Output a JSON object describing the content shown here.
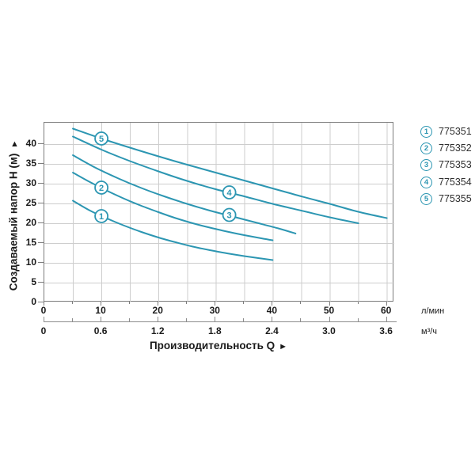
{
  "colors": {
    "curve": "#2c96b2",
    "grid": "#cdcdcd",
    "plot_border": "#7d7d7d",
    "axis2": "#8c8c8c",
    "text": "#1a1a1a",
    "legend_text": "#2e2e2e",
    "background": "#ffffff"
  },
  "y_axis": {
    "title": "Создаваемый напор H (м)",
    "arrow": "▲",
    "ticks": [
      0,
      5,
      10,
      15,
      20,
      25,
      30,
      35,
      40
    ]
  },
  "x_axis": {
    "title": "Производительность Q",
    "arrow": "►",
    "primary_ticks": [
      0,
      10,
      20,
      30,
      40,
      50,
      60
    ],
    "primary_unit": "л/мин",
    "secondary_ticks": [
      "0",
      "0.6",
      "1.2",
      "1.8",
      "2.4",
      "3.0",
      "3.6"
    ],
    "secondary_unit": "м³/ч"
  },
  "legend": {
    "items": [
      {
        "index": "1",
        "label": "775351"
      },
      {
        "index": "2",
        "label": "775352"
      },
      {
        "index": "3",
        "label": "775353"
      },
      {
        "index": "4",
        "label": "775354"
      },
      {
        "index": "5",
        "label": "775355"
      }
    ]
  },
  "chart_data": {
    "type": "line",
    "title": "",
    "xlabel": "Производительность Q (л/мин)",
    "x_secondary_label": "Производительность Q (м³/ч)",
    "ylabel": "Создаваемый напор H (м)",
    "xlim": [
      0,
      61.3
    ],
    "ylim": [
      0,
      45.4
    ],
    "grid": true,
    "grid_step": 5,
    "legend_position": "right",
    "series": [
      {
        "name": "775351",
        "marker": "1",
        "marker_at": [
          10,
          21.8
        ],
        "points": [
          [
            5,
            25.7
          ],
          [
            8,
            23.2
          ],
          [
            11,
            21.2
          ],
          [
            14,
            19.4
          ],
          [
            17,
            17.8
          ],
          [
            20,
            16.4
          ],
          [
            23,
            15.2
          ],
          [
            26,
            14.1
          ],
          [
            29,
            13.2
          ],
          [
            32,
            12.4
          ],
          [
            35,
            11.7
          ],
          [
            38,
            11.1
          ],
          [
            40,
            10.7
          ]
        ]
      },
      {
        "name": "775352",
        "marker": "2",
        "marker_at": [
          10,
          29.0
        ],
        "points": [
          [
            5,
            32.8
          ],
          [
            8,
            30.4
          ],
          [
            11,
            28.2
          ],
          [
            14,
            26.2
          ],
          [
            17,
            24.4
          ],
          [
            20,
            22.8
          ],
          [
            23,
            21.3
          ],
          [
            26,
            20.0
          ],
          [
            29,
            18.9
          ],
          [
            32,
            17.9
          ],
          [
            35,
            17.0
          ],
          [
            38,
            16.2
          ],
          [
            40,
            15.7
          ]
        ]
      },
      {
        "name": "775353",
        "marker": "3",
        "marker_at": [
          32.4,
          22.1
        ],
        "points": [
          [
            5,
            37.2
          ],
          [
            9,
            34.0
          ],
          [
            13,
            31.3
          ],
          [
            17,
            28.9
          ],
          [
            21,
            26.8
          ],
          [
            25,
            24.9
          ],
          [
            29,
            23.2
          ],
          [
            33,
            21.7
          ],
          [
            37,
            20.2
          ],
          [
            41,
            18.7
          ],
          [
            44,
            17.4
          ]
        ]
      },
      {
        "name": "775354",
        "marker": "4",
        "marker_at": [
          32.4,
          27.8
        ],
        "points": [
          [
            5,
            41.9
          ],
          [
            10,
            38.6
          ],
          [
            15,
            35.7
          ],
          [
            20,
            33.1
          ],
          [
            25,
            30.7
          ],
          [
            30,
            28.6
          ],
          [
            35,
            26.8
          ],
          [
            40,
            24.9
          ],
          [
            45,
            23.2
          ],
          [
            50,
            21.5
          ],
          [
            55,
            20.0
          ]
        ]
      },
      {
        "name": "775355",
        "marker": "5",
        "marker_at": [
          10,
          41.4
        ],
        "points": [
          [
            5,
            43.9
          ],
          [
            10,
            41.4
          ],
          [
            15,
            39.1
          ],
          [
            20,
            36.9
          ],
          [
            25,
            34.8
          ],
          [
            30,
            32.8
          ],
          [
            35,
            30.8
          ],
          [
            40,
            28.8
          ],
          [
            45,
            26.8
          ],
          [
            50,
            24.9
          ],
          [
            55,
            22.9
          ],
          [
            60,
            21.3
          ]
        ]
      }
    ]
  }
}
